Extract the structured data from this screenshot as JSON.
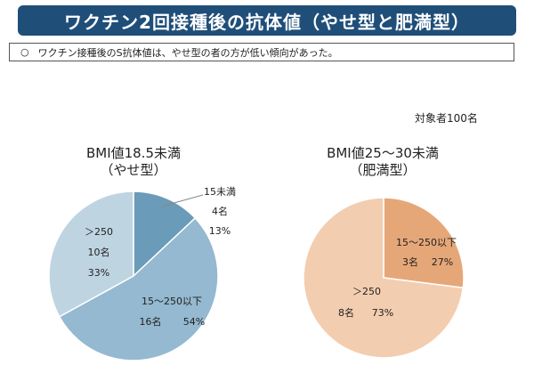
{
  "title": "ワクチン2回接種後の抗体値（やせ型と肥満型）",
  "summary": {
    "bullet": "○",
    "text": "ワクチン接種後のS抗体値は、やせ型の者の方が低い傾向があった。"
  },
  "subjects_note": "対象者100名",
  "colors": {
    "title_bg": "#1f4e79",
    "left_lt15": "#6a9bb8",
    "left_mid": "#94b9d0",
    "left_gt250": "#bfd4e1",
    "right_mid": "#e6a778",
    "right_gt250": "#f3cdb0"
  },
  "chart_data": [
    {
      "type": "pie",
      "title_line1": "BMI値18.5未満",
      "title_line2": "（やせ型）",
      "slices": [
        {
          "category": "15未満",
          "count_label": "4名",
          "count": 4,
          "percent_label": "13%",
          "percent": 13
        },
        {
          "category": "15～250以下",
          "count_label": "16名",
          "count": 16,
          "percent_label": "54%",
          "percent": 54
        },
        {
          "category": "＞250",
          "count_label": "10名",
          "count": 10,
          "percent_label": "33%",
          "percent": 33
        }
      ]
    },
    {
      "type": "pie",
      "title_line1": "BMI値25～30未満",
      "title_line2": "（肥満型）",
      "slices": [
        {
          "category": "15～250以下",
          "count_label": "3名",
          "count": 3,
          "percent_label": "27%",
          "percent": 27
        },
        {
          "category": "＞250",
          "count_label": "8名",
          "count": 8,
          "percent_label": "73%",
          "percent": 73
        }
      ]
    }
  ]
}
